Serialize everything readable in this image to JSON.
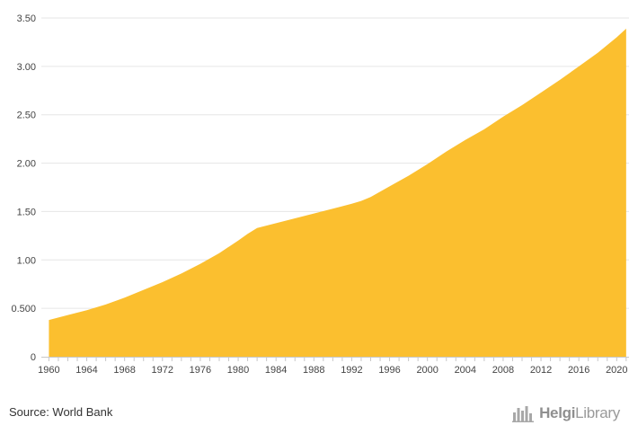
{
  "chart_data": {
    "type": "area",
    "x": [
      1960,
      1962,
      1964,
      1966,
      1968,
      1970,
      1972,
      1974,
      1976,
      1978,
      1980,
      1981,
      1982,
      1984,
      1986,
      1988,
      1990,
      1992,
      1993,
      1994,
      1996,
      1998,
      2000,
      2002,
      2004,
      2006,
      2008,
      2010,
      2012,
      2014,
      2016,
      2018,
      2020,
      2021
    ],
    "values": [
      0.38,
      0.43,
      0.48,
      0.54,
      0.61,
      0.69,
      0.77,
      0.86,
      0.96,
      1.07,
      1.2,
      1.27,
      1.33,
      1.38,
      1.43,
      1.48,
      1.53,
      1.58,
      1.61,
      1.65,
      1.76,
      1.87,
      1.99,
      2.12,
      2.24,
      2.35,
      2.48,
      2.6,
      2.73,
      2.86,
      3.0,
      3.14,
      3.3,
      3.39
    ],
    "xlim": [
      1959.2,
      2021.3
    ],
    "ylim": [
      0,
      3.5
    ],
    "yticks": [
      0,
      0.5,
      1.0,
      1.5,
      2.0,
      2.5,
      3.0,
      3.5
    ],
    "ytick_labels": [
      "0",
      "0.500",
      "1.00",
      "1.50",
      "2.00",
      "2.50",
      "3.00",
      "3.50"
    ],
    "xticks": [
      1960,
      1964,
      1968,
      1972,
      1976,
      1980,
      1984,
      1988,
      1992,
      1996,
      2000,
      2004,
      2008,
      2012,
      2016,
      2020
    ],
    "xtick_labels": [
      "1960",
      "1964",
      "1968",
      "1972",
      "1976",
      "1980",
      "1984",
      "1988",
      "1992",
      "1996",
      "2000",
      "2004",
      "2008",
      "2012",
      "2016",
      "2020"
    ],
    "title": "",
    "xlabel": "",
    "ylabel": "",
    "grid": true,
    "color": "#FBBF2F"
  },
  "footer": {
    "source": "Source: World Bank",
    "brand_bold": "Helgi",
    "brand_rest": "Library"
  }
}
